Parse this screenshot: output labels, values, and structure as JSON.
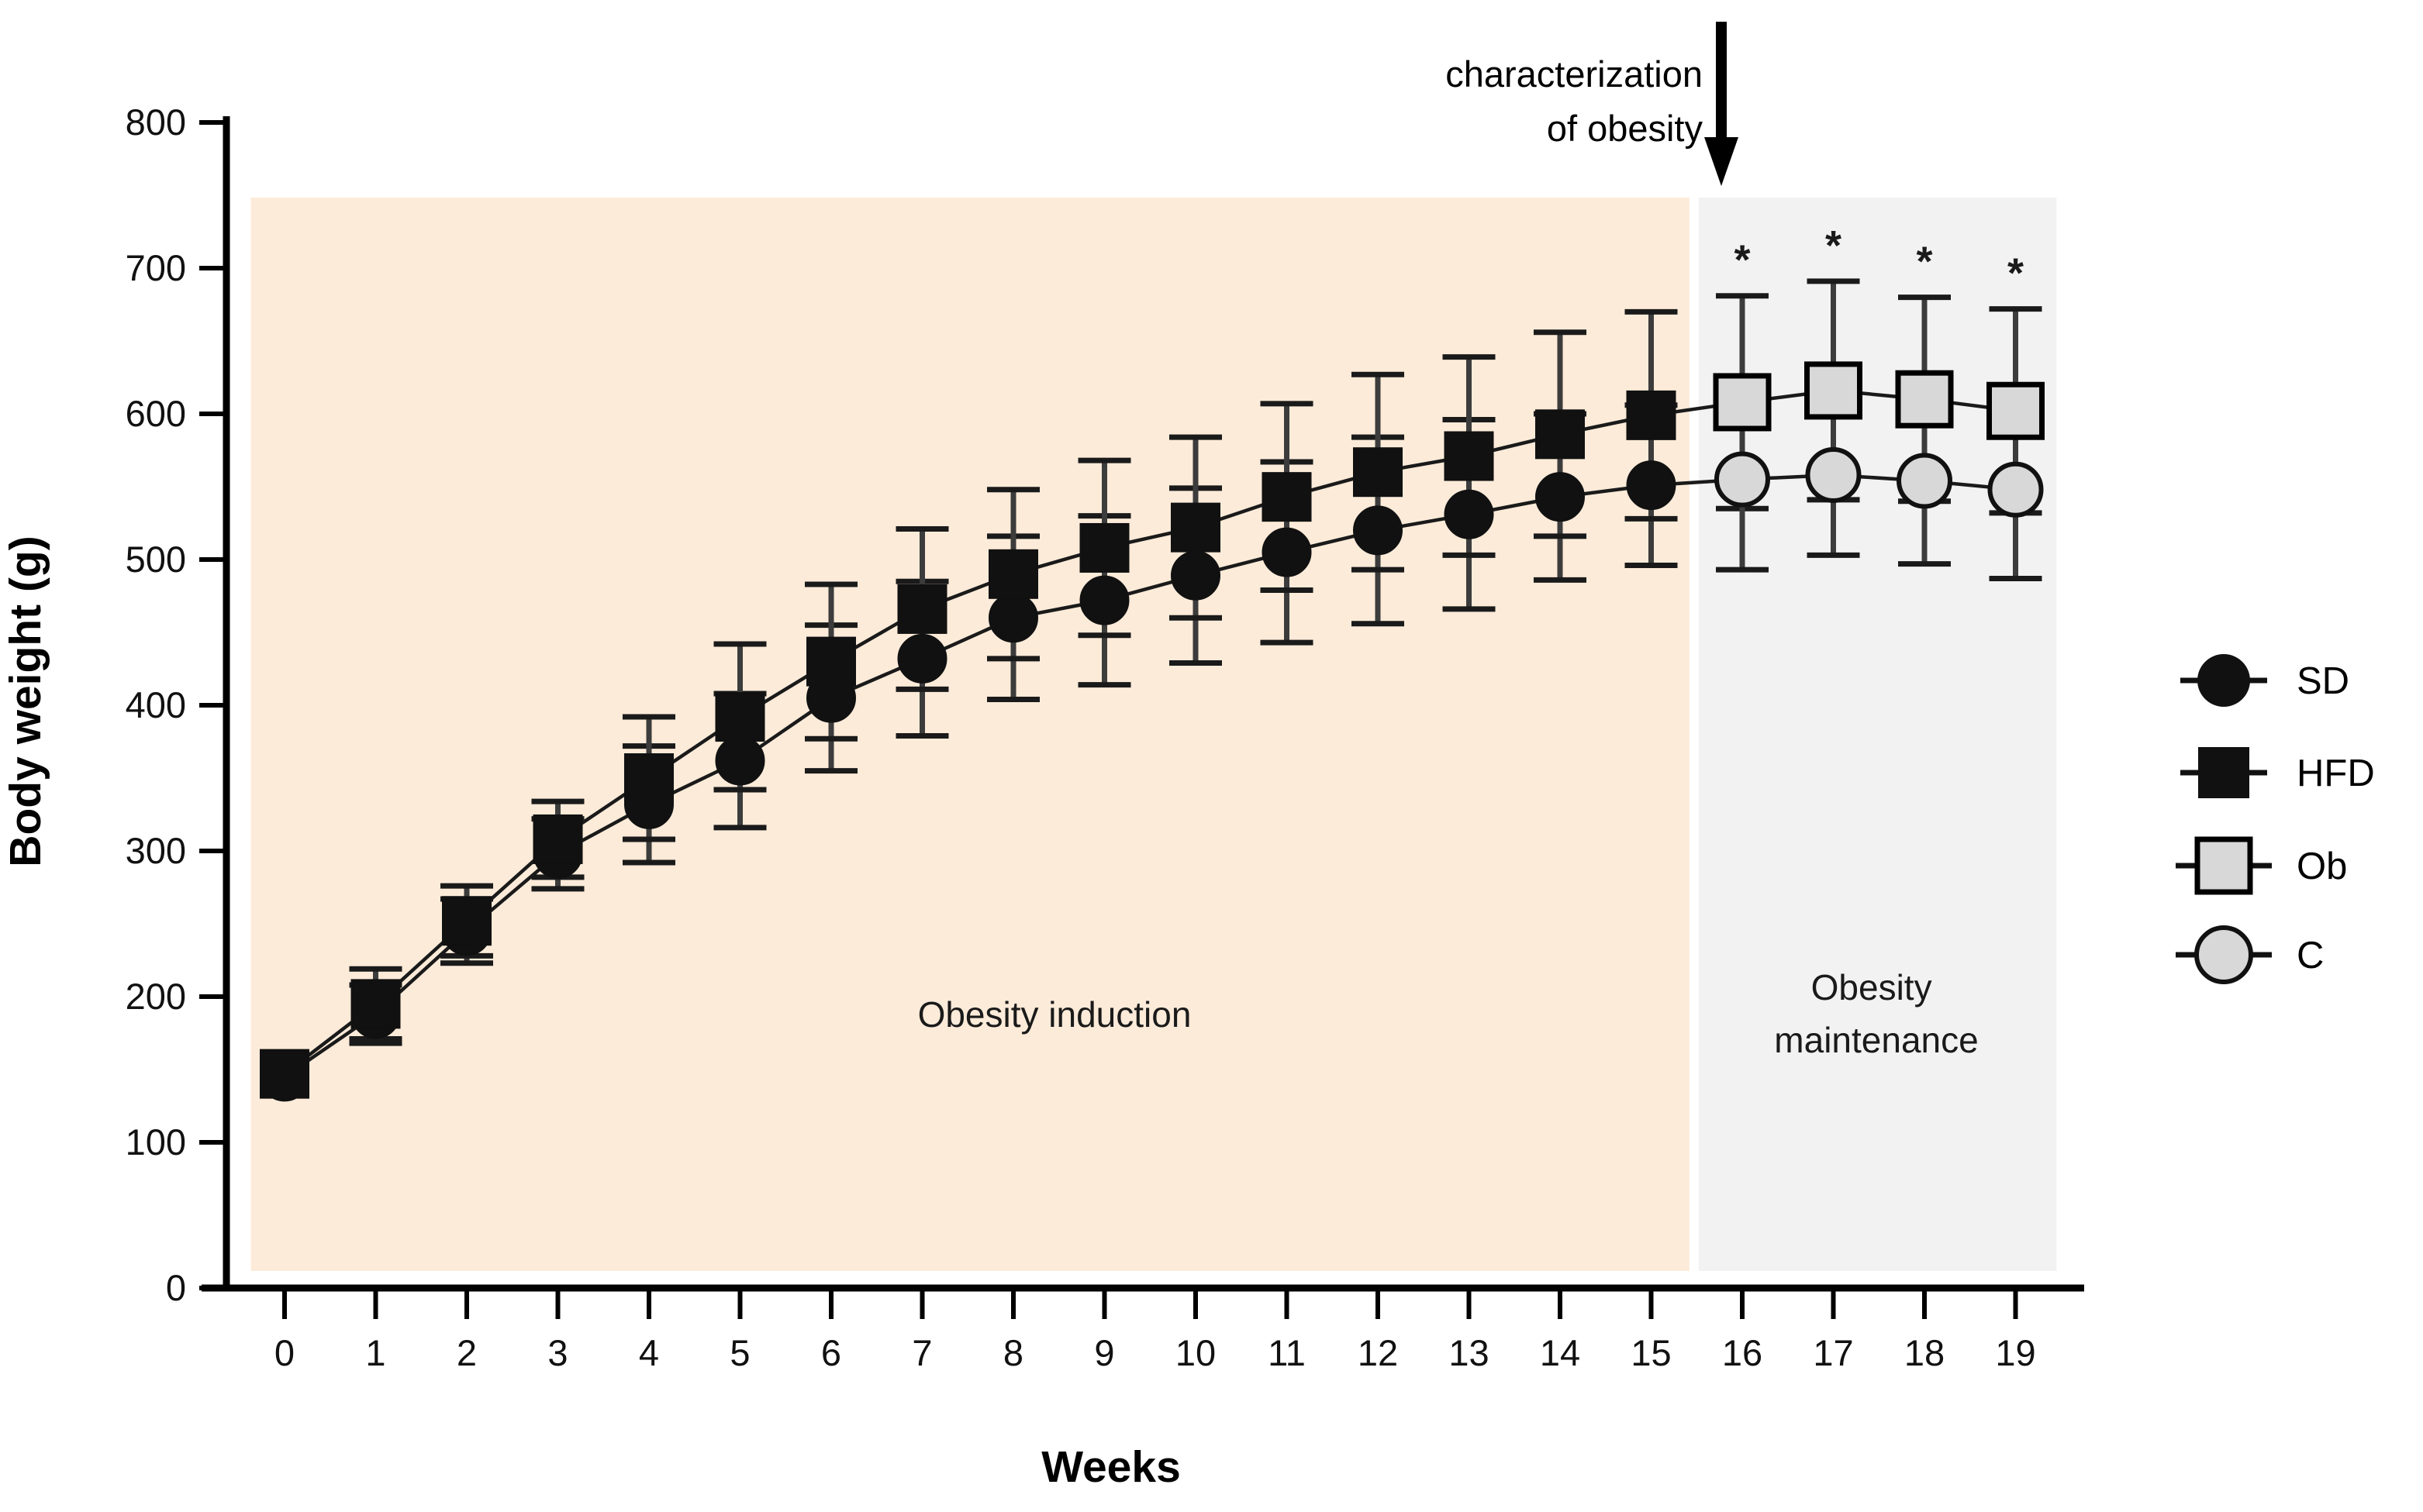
{
  "figure": {
    "background": "#ffffff",
    "accent_colors": {
      "induction_band": "#fcebd9",
      "maintenance_band": "#f2f2f2",
      "gray_marker_fill": "#d8d8d8",
      "black_marker_fill": "#111111"
    }
  },
  "axes": {
    "y_label": "Body weight (g)",
    "x_label": "Weeks",
    "y_ticks": [
      0,
      100,
      200,
      300,
      400,
      500,
      600,
      700,
      800
    ],
    "x_ticks": [
      0,
      1,
      2,
      3,
      4,
      5,
      6,
      7,
      8,
      9,
      10,
      11,
      12,
      13,
      14,
      15,
      16,
      17,
      18,
      19
    ]
  },
  "annotation": {
    "line1": "characterization",
    "line2": "of obesity",
    "arrow": "down-arrow"
  },
  "phases": [
    {
      "label_lines": [
        "Obesity induction"
      ],
      "week_start": -0.37,
      "week_end": 15.42,
      "color": "#fcebd9"
    },
    {
      "label_lines": [
        "Obesity",
        "maintenance"
      ],
      "week_start": 15.52,
      "week_end": 19.45,
      "color": "#f2f2f2"
    }
  ],
  "legend": [
    {
      "label": "SD",
      "marker": "circle",
      "fill": "#111111",
      "stroke": "#111111"
    },
    {
      "label": "HFD",
      "marker": "square",
      "fill": "#111111",
      "stroke": "#111111"
    },
    {
      "label": "Ob",
      "marker": "square",
      "fill": "#d8d8d8",
      "stroke": "#000000"
    },
    {
      "label": "C",
      "marker": "circle",
      "fill": "#d8d8d8",
      "stroke": "#111111"
    }
  ],
  "chart_data": {
    "type": "line",
    "title": "",
    "xlabel": "Weeks",
    "ylabel": "Body weight (g)",
    "ylim": [
      0,
      800
    ],
    "xlim": [
      -0.8,
      20
    ],
    "grid": false,
    "legend_position": "right-outside",
    "categories": [
      0,
      1,
      2,
      3,
      4,
      5,
      6,
      7,
      8,
      9,
      10,
      11,
      12,
      13,
      14,
      15,
      16,
      17,
      18,
      19
    ],
    "series": [
      {
        "name": "SD",
        "marker": "circle",
        "fill": "#111111",
        "stroke": "#111111",
        "weeks": [
          0,
          1,
          2,
          3,
          4,
          5,
          6,
          7,
          8,
          9,
          10,
          11,
          12,
          13,
          14,
          15
        ],
        "values": [
          145,
          188,
          245,
          298,
          332,
          362,
          405,
          432,
          460,
          472,
          489,
          505,
          520,
          531,
          543,
          551
        ],
        "errors": [
          8,
          20,
          22,
          24,
          40,
          46,
          50,
          53,
          56,
          58,
          60,
          62,
          64,
          65,
          57,
          55
        ]
      },
      {
        "name": "HFD",
        "marker": "square",
        "fill": "#111111",
        "stroke": "#111111",
        "weeks": [
          0,
          1,
          2,
          3,
          4,
          5,
          6,
          7,
          8,
          9,
          10,
          11,
          12,
          13,
          14,
          15
        ],
        "values": [
          147,
          195,
          252,
          308,
          350,
          392,
          430,
          466,
          490,
          508,
          522,
          543,
          560,
          571,
          586,
          599
        ],
        "errors": [
          8,
          24,
          24,
          26,
          42,
          50,
          53,
          55,
          58,
          60,
          62,
          64,
          67,
          68,
          70,
          71
        ]
      },
      {
        "name": "Ob",
        "marker": "square",
        "fill": "#d8d8d8",
        "stroke": "#000000",
        "weeks": [
          16,
          17,
          18,
          19
        ],
        "values": [
          608,
          616,
          610,
          602
        ],
        "errors": [
          73,
          75,
          70,
          70
        ],
        "significance": [
          "*",
          "*",
          "*",
          "*"
        ],
        "connects_from": "HFD"
      },
      {
        "name": "C",
        "marker": "circle",
        "fill": "#d8d8d8",
        "stroke": "#111111",
        "weeks": [
          16,
          17,
          18,
          19
        ],
        "values": [
          555,
          558,
          554,
          548
        ],
        "errors": [
          62,
          55,
          57,
          61
        ],
        "connects_from": "SD"
      }
    ]
  }
}
